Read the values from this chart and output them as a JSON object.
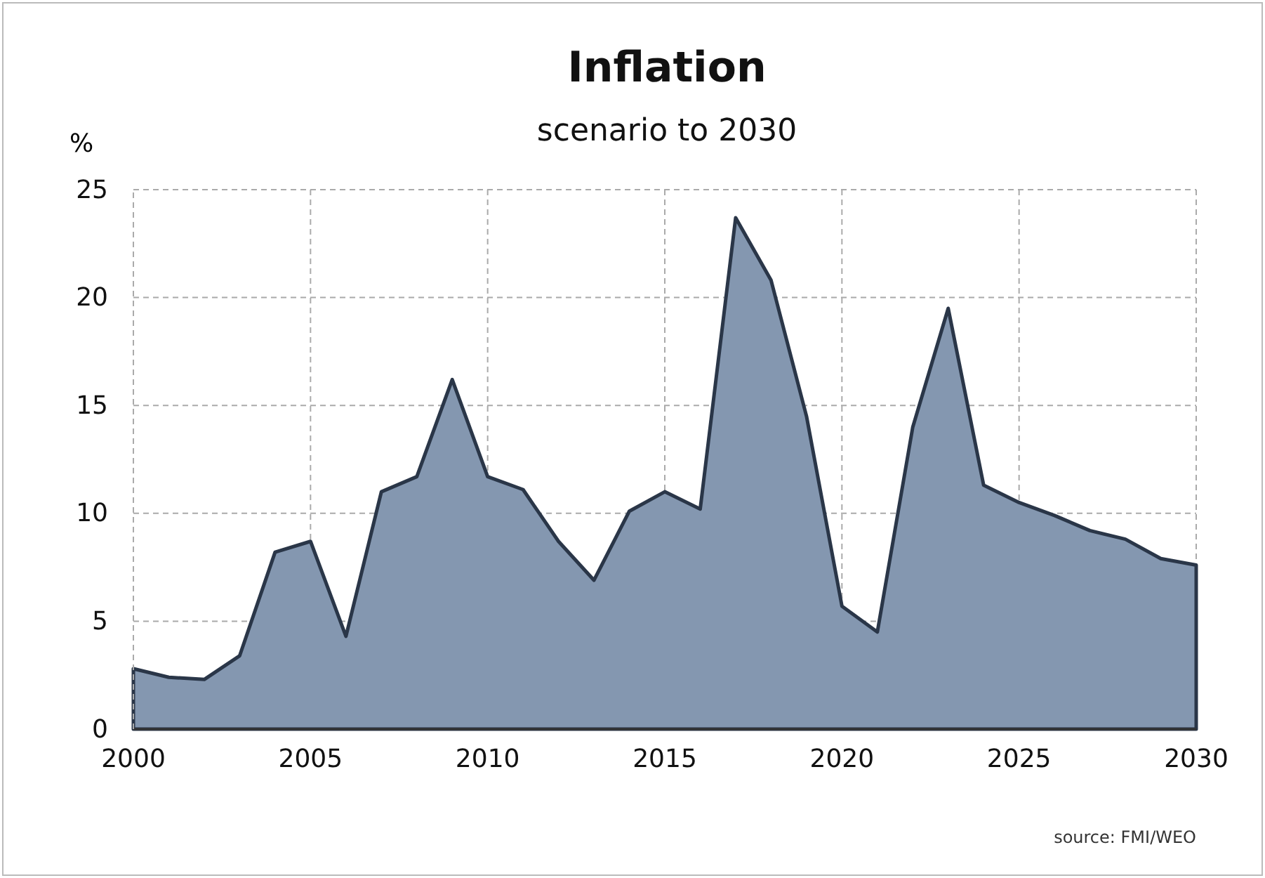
{
  "chart_data": {
    "type": "area",
    "title": "Inflation",
    "subtitle": "scenario to 2030",
    "ylabel": "%",
    "x": [
      2000,
      2001,
      2002,
      2003,
      2004,
      2005,
      2006,
      2007,
      2008,
      2009,
      2010,
      2011,
      2012,
      2013,
      2014,
      2015,
      2016,
      2017,
      2018,
      2019,
      2020,
      2021,
      2022,
      2023,
      2024,
      2025,
      2026,
      2027,
      2028,
      2029,
      2030
    ],
    "series": [
      {
        "color": "#8497b0",
        "values": [
          2.8,
          2.4,
          2.3,
          3.4,
          8.2,
          8.7,
          4.3,
          11.0,
          11.7,
          16.2,
          11.7,
          11.1,
          8.7,
          6.9,
          10.1,
          11.0,
          10.2,
          23.7,
          20.8,
          14.5,
          5.7,
          4.5,
          14.0,
          19.5,
          11.3,
          10.5,
          9.9,
          9.2,
          8.8,
          7.9,
          7.6
        ]
      }
    ],
    "xlim": [
      2000,
      2030
    ],
    "xticks": [
      2000,
      2005,
      2010,
      2015,
      2020,
      2025,
      2030
    ],
    "ylim": [
      0,
      25
    ],
    "yticks": [
      0,
      5,
      10,
      15,
      20,
      25
    ],
    "grid": true,
    "annotations": [
      "source: FMI/WEO"
    ]
  }
}
